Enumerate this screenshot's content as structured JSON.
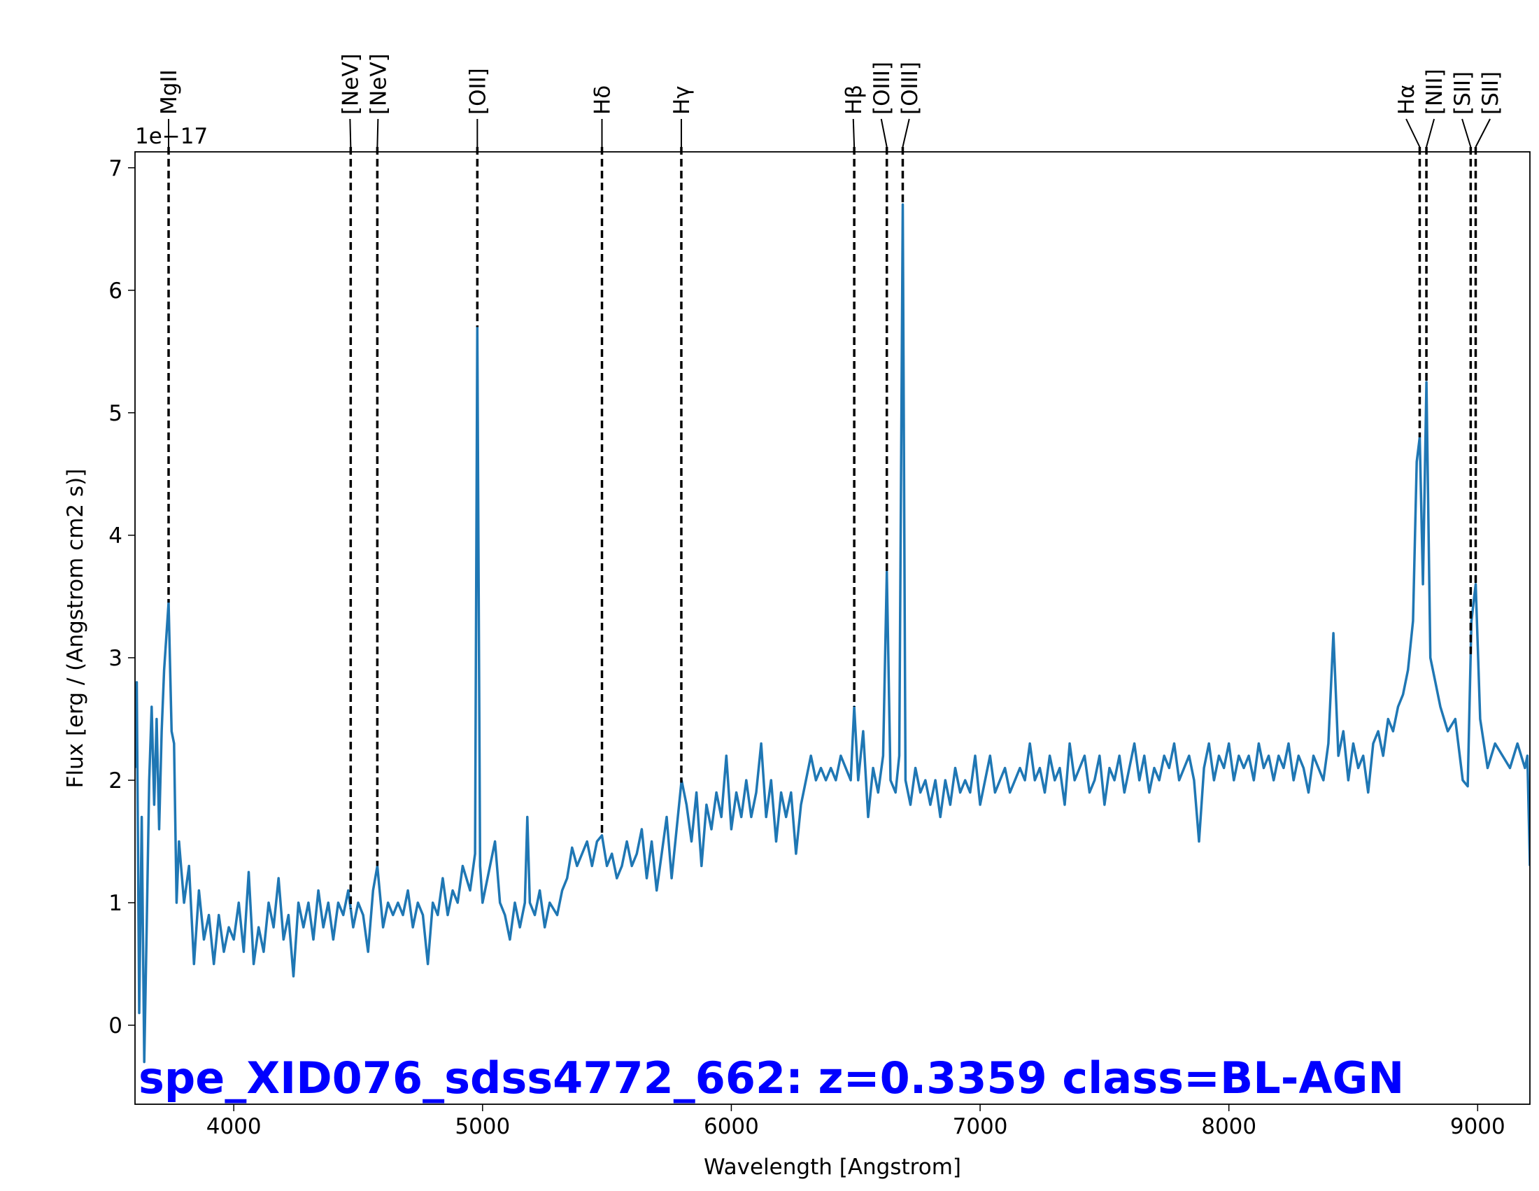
{
  "chart_data": {
    "type": "line",
    "title": "spe_XID076_sdss4772_662: z=0.3359 class=BL-AGN",
    "title_color": "#0000ff",
    "x_label": "Wavelength [Angstrom]",
    "y_label": "Flux [erg / (Angstrom cm2 s)]",
    "y_offset_label": "1e−17",
    "xlim": [
      3603,
      9210
    ],
    "ylim": [
      -0.645,
      7.13
    ],
    "xticks": [
      4000,
      5000,
      6000,
      7000,
      8000,
      9000
    ],
    "yticks": [
      0,
      1,
      2,
      3,
      4,
      5,
      6,
      7
    ],
    "series": [
      {
        "name": "spectrum",
        "color": "#1f77b4",
        "x": [
          3603,
          3610,
          3620,
          3630,
          3640,
          3650,
          3660,
          3670,
          3680,
          3690,
          3700,
          3710,
          3720,
          3738,
          3750,
          3760,
          3770,
          3780,
          3800,
          3820,
          3840,
          3860,
          3880,
          3900,
          3920,
          3940,
          3960,
          3980,
          4000,
          4020,
          4040,
          4060,
          4080,
          4100,
          4120,
          4140,
          4160,
          4180,
          4200,
          4220,
          4240,
          4260,
          4280,
          4300,
          4320,
          4340,
          4360,
          4380,
          4400,
          4420,
          4440,
          4460,
          4480,
          4500,
          4520,
          4540,
          4560,
          4577,
          4600,
          4620,
          4640,
          4660,
          4680,
          4700,
          4720,
          4740,
          4760,
          4780,
          4800,
          4820,
          4840,
          4860,
          4880,
          4900,
          4920,
          4950,
          4970,
          4979,
          4990,
          5000,
          5020,
          5050,
          5070,
          5090,
          5110,
          5130,
          5150,
          5170,
          5180,
          5190,
          5210,
          5230,
          5250,
          5270,
          5300,
          5320,
          5340,
          5360,
          5380,
          5400,
          5420,
          5440,
          5460,
          5480,
          5500,
          5520,
          5540,
          5560,
          5580,
          5600,
          5620,
          5640,
          5660,
          5680,
          5700,
          5720,
          5740,
          5760,
          5780,
          5800,
          5820,
          5840,
          5860,
          5880,
          5900,
          5920,
          5940,
          5960,
          5980,
          6000,
          6020,
          6040,
          6060,
          6080,
          6100,
          6120,
          6140,
          6160,
          6180,
          6200,
          6220,
          6240,
          6260,
          6280,
          6300,
          6320,
          6340,
          6360,
          6380,
          6400,
          6420,
          6440,
          6460,
          6480,
          6494,
          6510,
          6530,
          6550,
          6570,
          6590,
          6610,
          6625,
          6640,
          6660,
          6675,
          6689,
          6700,
          6720,
          6740,
          6760,
          6780,
          6800,
          6820,
          6840,
          6860,
          6880,
          6900,
          6920,
          6940,
          6960,
          6980,
          7000,
          7020,
          7040,
          7060,
          7080,
          7100,
          7120,
          7140,
          7160,
          7180,
          7200,
          7220,
          7240,
          7260,
          7280,
          7300,
          7320,
          7340,
          7360,
          7380,
          7400,
          7420,
          7440,
          7460,
          7480,
          7500,
          7520,
          7540,
          7560,
          7580,
          7600,
          7620,
          7640,
          7660,
          7680,
          7700,
          7720,
          7740,
          7760,
          7780,
          7800,
          7820,
          7840,
          7860,
          7880,
          7900,
          7920,
          7940,
          7960,
          7980,
          8000,
          8020,
          8040,
          8060,
          8080,
          8100,
          8120,
          8140,
          8160,
          8180,
          8200,
          8220,
          8240,
          8260,
          8280,
          8300,
          8320,
          8340,
          8360,
          8380,
          8400,
          8420,
          8440,
          8460,
          8480,
          8500,
          8520,
          8540,
          8560,
          8580,
          8600,
          8620,
          8640,
          8660,
          8680,
          8700,
          8720,
          8740,
          8755,
          8767,
          8780,
          8794,
          8810,
          8830,
          8850,
          8880,
          8910,
          8940,
          8960,
          8975,
          8992,
          9010,
          9040,
          9070,
          9100,
          9130,
          9160,
          9190,
          9200,
          9210
        ],
        "values": [
          2.1,
          2.8,
          0.1,
          1.7,
          -0.3,
          0.8,
          2.0,
          2.6,
          1.8,
          2.5,
          1.6,
          2.4,
          2.9,
          3.45,
          2.4,
          2.3,
          1.0,
          1.5,
          1.0,
          1.3,
          0.5,
          1.1,
          0.7,
          0.9,
          0.5,
          0.9,
          0.6,
          0.8,
          0.7,
          1.0,
          0.6,
          1.25,
          0.5,
          0.8,
          0.6,
          1.0,
          0.8,
          1.2,
          0.7,
          0.9,
          0.4,
          1.0,
          0.8,
          1.0,
          0.7,
          1.1,
          0.8,
          1.0,
          0.7,
          1.0,
          0.9,
          1.1,
          0.8,
          1.0,
          0.9,
          0.6,
          1.1,
          1.3,
          0.8,
          1.0,
          0.9,
          1.0,
          0.9,
          1.1,
          0.8,
          1.0,
          0.9,
          0.5,
          1.0,
          0.9,
          1.2,
          0.9,
          1.1,
          1.0,
          1.3,
          1.1,
          1.4,
          5.7,
          1.3,
          1.0,
          1.2,
          1.5,
          1.0,
          0.9,
          0.7,
          1.0,
          0.8,
          1.0,
          1.7,
          1.0,
          0.9,
          1.1,
          0.8,
          1.0,
          0.9,
          1.1,
          1.2,
          1.45,
          1.3,
          1.4,
          1.5,
          1.3,
          1.5,
          1.55,
          1.3,
          1.4,
          1.2,
          1.3,
          1.5,
          1.3,
          1.4,
          1.6,
          1.2,
          1.5,
          1.1,
          1.4,
          1.7,
          1.2,
          1.6,
          2.0,
          1.8,
          1.5,
          1.9,
          1.3,
          1.8,
          1.6,
          1.9,
          1.7,
          2.2,
          1.6,
          1.9,
          1.7,
          2.0,
          1.7,
          1.9,
          2.3,
          1.7,
          2.0,
          1.5,
          1.9,
          1.7,
          1.9,
          1.4,
          1.8,
          2.0,
          2.2,
          2.0,
          2.1,
          2.0,
          2.1,
          2.0,
          2.2,
          2.1,
          2.0,
          2.6,
          2.0,
          2.4,
          1.7,
          2.1,
          1.9,
          2.2,
          3.7,
          2.0,
          1.9,
          2.2,
          6.7,
          2.0,
          1.8,
          2.1,
          1.9,
          2.0,
          1.8,
          2.0,
          1.7,
          2.0,
          1.8,
          2.1,
          1.9,
          2.0,
          1.9,
          2.2,
          1.8,
          2.0,
          2.2,
          1.9,
          2.0,
          2.1,
          1.9,
          2.0,
          2.1,
          2.0,
          2.3,
          2.0,
          2.1,
          1.9,
          2.2,
          2.0,
          2.1,
          1.8,
          2.3,
          2.0,
          2.1,
          2.2,
          1.9,
          2.0,
          2.2,
          1.8,
          2.1,
          2.0,
          2.2,
          1.9,
          2.1,
          2.3,
          2.0,
          2.2,
          1.9,
          2.1,
          2.0,
          2.2,
          2.1,
          2.3,
          2.0,
          2.1,
          2.2,
          2.0,
          1.5,
          2.1,
          2.3,
          2.0,
          2.2,
          2.1,
          2.3,
          2.0,
          2.2,
          2.1,
          2.2,
          2.0,
          2.3,
          2.1,
          2.2,
          2.0,
          2.2,
          2.1,
          2.3,
          2.0,
          2.2,
          2.1,
          1.9,
          2.2,
          2.1,
          2.0,
          2.3,
          3.2,
          2.2,
          2.4,
          2.0,
          2.3,
          2.1,
          2.2,
          1.9,
          2.3,
          2.4,
          2.2,
          2.5,
          2.4,
          2.6,
          2.7,
          2.9,
          3.3,
          4.6,
          4.8,
          3.6,
          5.25,
          3.0,
          2.8,
          2.6,
          2.4,
          2.5,
          2.0,
          1.95,
          3.3,
          3.6,
          2.5,
          2.1,
          2.3,
          2.2,
          2.1,
          2.3,
          2.1,
          2.2,
          1.3
        ]
      }
    ],
    "lines": [
      {
        "name": "MgII",
        "wavelength": 3738
      },
      {
        "name": "[NeV]",
        "wavelength": 4470
      },
      {
        "name": "[NeV]",
        "wavelength": 4577
      },
      {
        "name": "[OII]",
        "wavelength": 4979
      },
      {
        "name": "Hδ",
        "wavelength": 5480
      },
      {
        "name": "Hγ",
        "wavelength": 5799
      },
      {
        "name": "Hβ",
        "wavelength": 6494
      },
      {
        "name": "[OIII]",
        "wavelength": 6625
      },
      {
        "name": "[OIII]",
        "wavelength": 6689
      },
      {
        "name": "Hα",
        "wavelength": 8767
      },
      {
        "name": "[NII]",
        "wavelength": 8794
      },
      {
        "name": "[SII]",
        "wavelength": 8972
      },
      {
        "name": "[SII]",
        "wavelength": 8992
      }
    ]
  }
}
